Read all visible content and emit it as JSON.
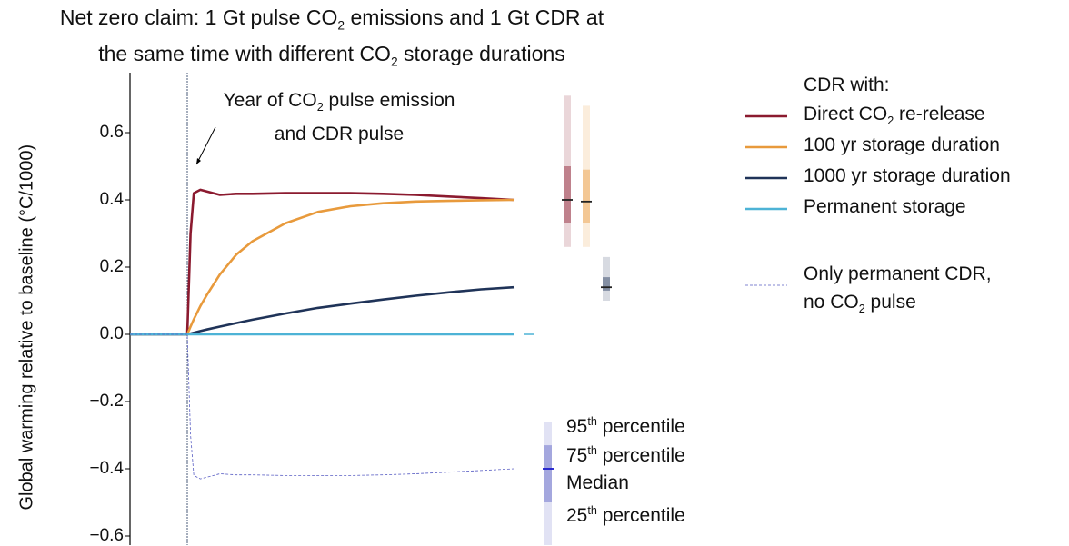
{
  "chart_data": {
    "type": "line",
    "title_line1": "Net zero claim: 1 Gt pulse CO",
    "title_sub1": "2",
    "title_line1b": " emissions and 1 Gt CDR at",
    "title_line2": "the same time with different CO",
    "title_sub2": "2",
    "title_line2b": " storage durations",
    "ylabel": "Global warming relative to baseline (°C/1000)",
    "ylim": [
      -0.63,
      0.78
    ],
    "yticks": [
      "0.6",
      "0.4",
      "0.2",
      "0.0",
      "−0.2",
      "−0.4",
      "−0.6"
    ],
    "ytick_values": [
      0.6,
      0.4,
      0.2,
      0,
      -0.2,
      -0.4,
      -0.6
    ],
    "x_relative_time": [
      -17.5,
      0,
      1,
      2,
      4,
      6,
      10,
      15,
      20,
      30,
      40,
      50,
      60,
      70,
      80,
      90,
      100
    ],
    "annotation": {
      "line1": "Year of CO",
      "sub": "2",
      "line1b": " pulse emission",
      "line2": "and CDR pulse"
    },
    "series": [
      {
        "name": "Direct CO2 re-release",
        "color": "#8b1a2f",
        "values": [
          0,
          0,
          0.3,
          0.42,
          0.43,
          0.425,
          0.415,
          0.418,
          0.418,
          0.42,
          0.42,
          0.42,
          0.418,
          0.415,
          0.41,
          0.405,
          0.4
        ],
        "range": {
          "p5": 0.26,
          "p25": 0.33,
          "median": 0.4,
          "p75": 0.5,
          "p95": 0.71
        }
      },
      {
        "name": "100 yr storage duration",
        "color": "#e89a3c",
        "values": [
          0,
          0,
          0.023,
          0.045,
          0.084,
          0.117,
          0.178,
          0.237,
          0.277,
          0.33,
          0.364,
          0.381,
          0.39,
          0.395,
          0.397,
          0.399,
          0.4
        ],
        "range": {
          "p5": 0.26,
          "p25": 0.33,
          "median": 0.395,
          "p75": 0.49,
          "p95": 0.68
        }
      },
      {
        "name": "1000 yr storage duration",
        "color": "#1f3358",
        "values": [
          0,
          0,
          0.0024,
          0.0049,
          0.0096,
          0.0142,
          0.0231,
          0.0336,
          0.0436,
          0.0619,
          0.0786,
          0.0913,
          0.1036,
          0.1148,
          0.125,
          0.1339,
          0.14
        ],
        "range": {
          "p5": 0.1,
          "p25": 0.13,
          "median": 0.14,
          "p75": 0.17,
          "p95": 0.23
        }
      },
      {
        "name": "Permanent storage",
        "color": "#4db3d6",
        "values": [
          0,
          0,
          0,
          0,
          0,
          0,
          0,
          0,
          0,
          0,
          0,
          0,
          0,
          0,
          0,
          0,
          0
        ],
        "range": {
          "p5": 0,
          "p25": 0,
          "median": 0,
          "p75": 0,
          "p95": 0
        }
      },
      {
        "name": "Only permanent CDR, no CO2 pulse",
        "color": "#5a5fc4",
        "dashed": true,
        "values": [
          0,
          0,
          -0.3,
          -0.42,
          -0.43,
          -0.425,
          -0.415,
          -0.418,
          -0.418,
          -0.42,
          -0.42,
          -0.42,
          -0.418,
          -0.415,
          -0.41,
          -0.405,
          -0.4
        ],
        "range": {
          "p5": -0.63,
          "p25": -0.5,
          "median": -0.4,
          "p75": -0.33,
          "p95": -0.26
        }
      }
    ],
    "legend": {
      "title": "CDR with:",
      "items": [
        {
          "a": "Direct CO",
          "sub": "2",
          "b": " re-release"
        },
        {
          "a": "100 yr storage duration",
          "sub": "",
          "b": ""
        },
        {
          "a": "1000 yr storage duration",
          "sub": "",
          "b": ""
        },
        {
          "a": "Permanent storage",
          "sub": "",
          "b": ""
        }
      ],
      "dashed_line1": "Only permanent CDR,",
      "dashed_line2a": "no CO",
      "dashed_sub": "2",
      "dashed_line2b": " pulse",
      "placement": "right"
    },
    "percentile_key": {
      "p95": "95",
      "p75": "75",
      "p25": "25",
      "th": "th",
      "percentile": " percentile",
      "median": "Median"
    }
  }
}
